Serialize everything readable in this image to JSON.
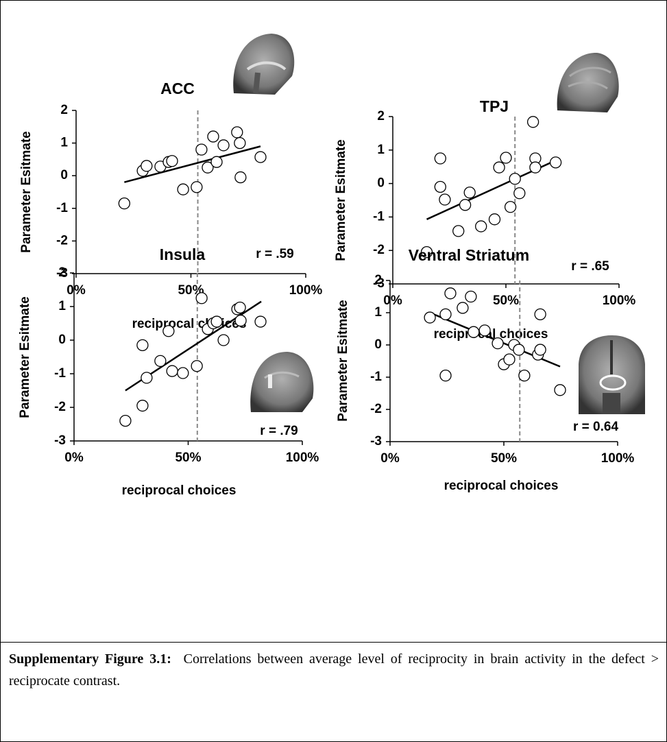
{
  "chart_data": [
    {
      "type": "scatter",
      "title": "ACC",
      "xlabel": "reciprocal choices",
      "ylabel": "Parameter Esitmate",
      "annotation": "r = .59",
      "x": [
        21,
        29,
        30.7,
        36.7,
        40.3,
        41.8,
        46.6,
        52.5,
        54.6,
        57.3,
        59.7,
        61.2,
        64.2,
        70.1,
        71.3,
        71.6,
        80.3
      ],
      "values": [
        -0.85,
        0.15,
        0.3,
        0.28,
        0.42,
        0.45,
        -0.42,
        -0.35,
        0.8,
        0.25,
        1.2,
        0.42,
        0.93,
        1.33,
        1.0,
        -0.05,
        0.57
      ],
      "trendline": {
        "x": [
          21,
          80.3
        ],
        "y": [
          -0.2,
          0.9
        ]
      },
      "vline": 53,
      "xlim": [
        0,
        100
      ],
      "xticks": [
        {
          "value": 0,
          "label": "0%"
        },
        {
          "value": 50,
          "label": "50%"
        },
        {
          "value": 100,
          "label": "100%"
        }
      ],
      "ylim": [
        -3,
        2
      ],
      "yticks": [
        -3,
        -2,
        -1,
        0,
        1,
        2
      ]
    },
    {
      "type": "scatter",
      "title": "TPJ",
      "xlabel": "reciprocal choices",
      "ylabel": "Parameter Esitmate",
      "annotation": "r = .65",
      "x": [
        15,
        21,
        21,
        23,
        29,
        32,
        34,
        39,
        45,
        47,
        50,
        52,
        54,
        56,
        62,
        63,
        63,
        72
      ],
      "values": [
        -2.05,
        0.75,
        -0.1,
        -0.48,
        -1.42,
        -0.64,
        -0.27,
        -1.28,
        -1.07,
        0.48,
        0.77,
        -0.7,
        0.14,
        -0.29,
        1.84,
        0.75,
        0.48,
        0.63
      ],
      "trendline": {
        "x": [
          15,
          72
        ],
        "y": [
          -1.07,
          0.69
        ]
      },
      "vline": 54,
      "xlim": [
        0,
        100
      ],
      "xticks": [
        {
          "value": 0,
          "label": "0%"
        },
        {
          "value": 50,
          "label": "50%"
        },
        {
          "value": 100,
          "label": "100%"
        }
      ],
      "ylim": [
        -3,
        2
      ],
      "yticks": [
        -3,
        -2,
        -1,
        0,
        1,
        2
      ]
    },
    {
      "type": "scatter",
      "title": "Insula",
      "xlabel": "reciprocal choices",
      "ylabel": "Parameter Esitmate",
      "annotation": "r = .79",
      "x": [
        22.5,
        30,
        30,
        31.8,
        37.8,
        41.4,
        43,
        47.7,
        53.8,
        55.9,
        58.6,
        61,
        62.5,
        65.5,
        71.5,
        72.7,
        73,
        81.7
      ],
      "values": [
        -2.4,
        -0.15,
        -1.95,
        -1.12,
        -0.62,
        0.27,
        -0.92,
        -0.98,
        -0.77,
        1.25,
        0.33,
        0.5,
        0.55,
        0.0,
        0.92,
        0.97,
        0.58,
        0.55
      ],
      "trendline": {
        "x": [
          22.5,
          82
        ],
        "y": [
          -1.5,
          1.15
        ]
      },
      "vline": 54,
      "xlim": [
        0,
        100
      ],
      "xticks": [
        {
          "value": 0,
          "label": "0%"
        },
        {
          "value": 50,
          "label": "50%"
        },
        {
          "value": 100,
          "label": "100%"
        }
      ],
      "ylim": [
        -3,
        2
      ],
      "yticks": [
        -3,
        -2,
        -1,
        0,
        1,
        2
      ]
    },
    {
      "type": "scatter",
      "title": "Ventral Striatum",
      "xlabel": "reciprocal choices",
      "ylabel": "Parameter Esitmate",
      "annotation": "r = 0.64",
      "x": [
        17.5,
        24.4,
        24.4,
        26.5,
        31.9,
        35.5,
        36.7,
        41.6,
        47.3,
        50,
        52.4,
        54.5,
        56.6,
        59,
        65,
        66,
        66,
        74.7
      ],
      "values": [
        0.85,
        0.95,
        -0.95,
        1.6,
        1.15,
        1.5,
        0.4,
        0.45,
        0.05,
        -0.6,
        -0.45,
        0.0,
        -0.15,
        -0.95,
        -0.3,
        -0.15,
        0.95,
        -1.4
      ],
      "trendline": {
        "x": [
          17.5,
          74.7
        ],
        "y": [
          1.0,
          -0.67
        ]
      },
      "vline": 57,
      "xlim": [
        0,
        100
      ],
      "xticks": [
        {
          "value": 0,
          "label": "0%"
        },
        {
          "value": 50,
          "label": "50%"
        },
        {
          "value": 100,
          "label": "100%"
        }
      ],
      "ylim": [
        -3,
        2
      ],
      "yticks": [
        -3,
        -2,
        -1,
        0,
        1,
        2
      ]
    }
  ],
  "caption": {
    "label": "Supplementary Figure 3.1:",
    "text": "Correlations between average level of reciprocity in brain activity in the defect > reciprocate contrast."
  }
}
